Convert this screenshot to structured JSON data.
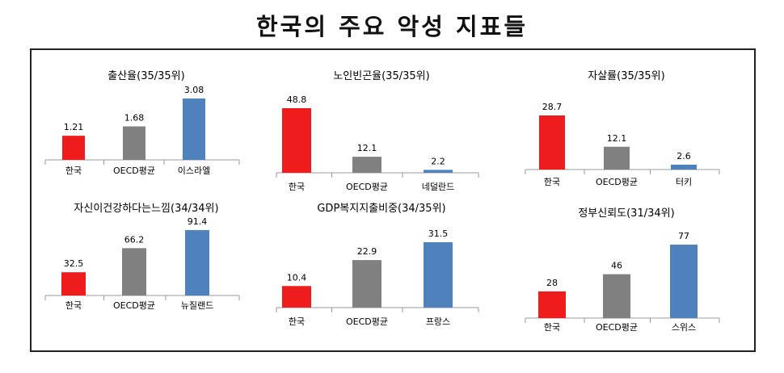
{
  "page": {
    "title": "한국의 주요 악성 지표들"
  },
  "colors": {
    "korea": "#ee1c1c",
    "oecd": "#808080",
    "best": "#4f81bd",
    "axis": "#999999"
  },
  "chart_data": [
    {
      "type": "bar",
      "title": "출산율(35/35위)",
      "categories": [
        "한국",
        "OECD평균",
        "이스라엘"
      ],
      "values": [
        1.21,
        1.68,
        3.08
      ],
      "value_labels": [
        "1.21",
        "1.68",
        "3.08"
      ]
    },
    {
      "type": "bar",
      "title": "노인빈곤율(35/35위)",
      "categories": [
        "한국",
        "OECD평균",
        "네덜란드"
      ],
      "values": [
        48.8,
        12.1,
        2.2
      ],
      "value_labels": [
        "48.8",
        "12.1",
        "2.2"
      ]
    },
    {
      "type": "bar",
      "title": "자살률(35/35위)",
      "categories": [
        "한국",
        "OECD평균",
        "터키"
      ],
      "values": [
        28.7,
        12.1,
        2.6
      ],
      "value_labels": [
        "28.7",
        "12.1",
        "2.6"
      ]
    },
    {
      "type": "bar",
      "title": "자신이건강하다는느낌(34/34위)",
      "categories": [
        "한국",
        "OECD평균",
        "뉴질랜드"
      ],
      "values": [
        32.5,
        66.2,
        91.4
      ],
      "value_labels": [
        "32.5",
        "66.2",
        "91.4"
      ]
    },
    {
      "type": "bar",
      "title": "GDP복지지출비중(34/35위)",
      "categories": [
        "한국",
        "OECD평균",
        "프랑스"
      ],
      "values": [
        10.4,
        22.9,
        31.5
      ],
      "value_labels": [
        "10.4",
        "22.9",
        "31.5"
      ]
    },
    {
      "type": "bar",
      "title": "정부신뢰도(31/34위)",
      "categories": [
        "한국",
        "OECD평균",
        "스위스"
      ],
      "values": [
        28,
        46,
        77
      ],
      "value_labels": [
        "28",
        "46",
        "77"
      ]
    }
  ]
}
